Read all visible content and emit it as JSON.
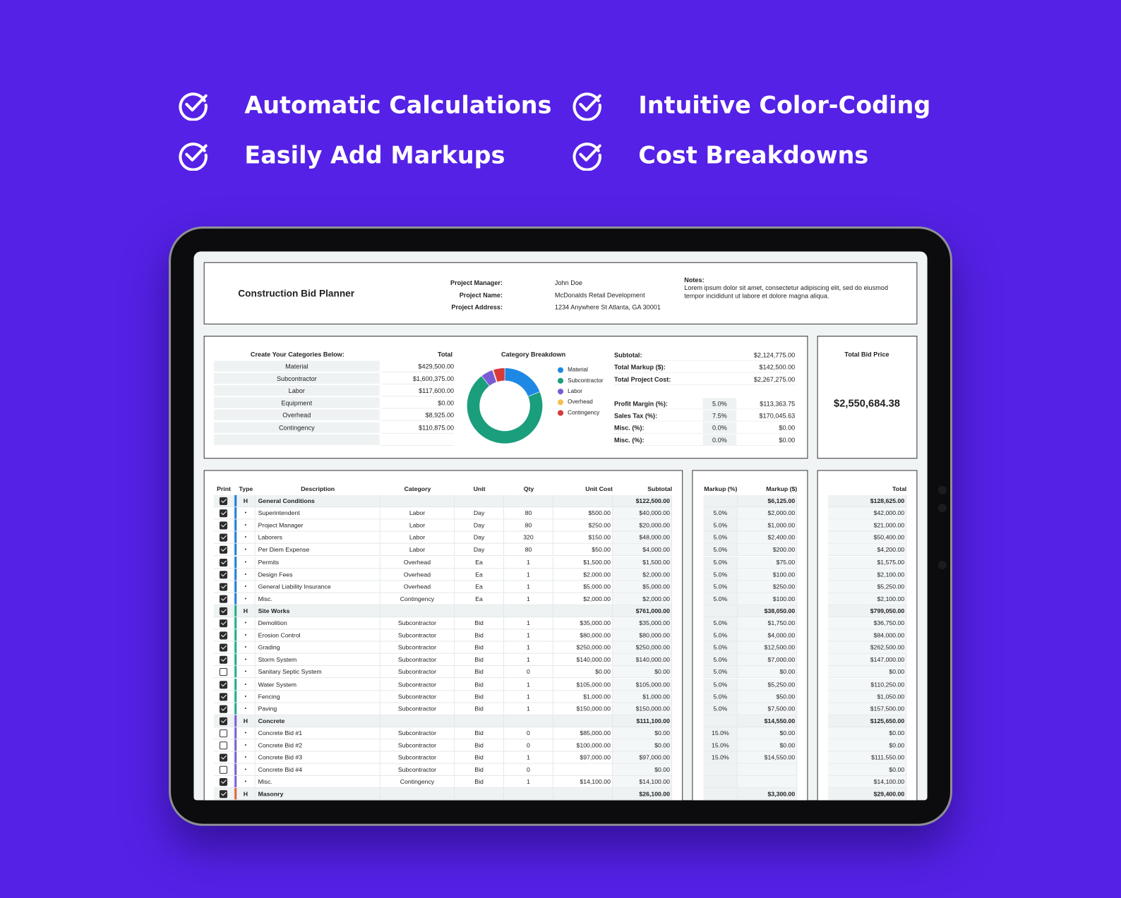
{
  "features": [
    "Automatic Calculations",
    "Intuitive Color-Coding",
    "Easily Add Markups",
    "Cost Breakdowns"
  ],
  "header": {
    "title": "Construction Bid Planner",
    "fields": [
      {
        "label": "Project Manager:",
        "value": "John Doe"
      },
      {
        "label": "Project Name:",
        "value": "McDonalds Retail Development"
      },
      {
        "label": "Project Address:",
        "value": "1234 Anywhere St Atlanta, GA 30001"
      }
    ],
    "notes_label": "Notes:",
    "notes": "Lorem ipsum dolor sit amet, consectetur adipiscing elit, sed do eiusmod tempor incididunt ut labore et dolore magna aliqua."
  },
  "categories": {
    "header": "Create Your Categories Below:",
    "total_header": "Total",
    "items": [
      {
        "name": "Material",
        "total": "$429,500.00"
      },
      {
        "name": "Subcontractor",
        "total": "$1,600,375.00"
      },
      {
        "name": "Labor",
        "total": "$117,600.00"
      },
      {
        "name": "Equipment",
        "total": "$0.00"
      },
      {
        "name": "Overhead",
        "total": "$8,925.00"
      },
      {
        "name": "Contingency",
        "total": "$110,875.00"
      },
      {
        "name": "",
        "total": ""
      }
    ]
  },
  "chart_data": {
    "type": "pie",
    "title": "Category Breakdown",
    "legend": "right",
    "categories": [
      "Material",
      "Subcontractor",
      "Labor",
      "Overhead",
      "Contingency"
    ],
    "values": [
      429500,
      1600375,
      117600,
      8925,
      110875
    ],
    "colors": [
      "#1e88e5",
      "#1a9e7c",
      "#7a5bd6",
      "#f5c04f",
      "#d63a3a"
    ]
  },
  "summary": {
    "rows": [
      {
        "label": "Subtotal:",
        "pct": "",
        "value": "$2,124,775.00"
      },
      {
        "label": "Total Markup ($):",
        "pct": "",
        "value": "$142,500.00"
      },
      {
        "label": "Total Project Cost:",
        "pct": "",
        "value": "$2,267,275.00"
      }
    ],
    "adjust": [
      {
        "label": "Profit Margin (%):",
        "pct": "5.0%",
        "value": "$113,363.75"
      },
      {
        "label": "Sales Tax (%):",
        "pct": "7.5%",
        "value": "$170,045.63"
      },
      {
        "label": "Misc. (%):",
        "pct": "0.0%",
        "value": "$0.00"
      },
      {
        "label": "Misc. (%):",
        "pct": "0.0%",
        "value": "$0.00"
      }
    ]
  },
  "total_bid": {
    "label": "Total Bid Price",
    "value": "$2,550,684.38"
  },
  "table": {
    "headers": {
      "print": "Print",
      "type": "Type",
      "description": "Description",
      "category": "Category",
      "unit": "Unit",
      "qty": "Qty",
      "unit_cost": "Unit Cost",
      "subtotal": "Subtotal",
      "markup_pct": "Markup (%)",
      "markup_amt": "Markup ($)",
      "total": "Total"
    },
    "section_colors": {
      "General Conditions": "#1e7fd8",
      "Site Works": "#1fae8a",
      "Concrete": "#7b5fd6",
      "Masonry": "#e0643c"
    },
    "rows": [
      {
        "print": true,
        "type": "H",
        "description": "General Conditions",
        "category": "",
        "unit": "",
        "qty": "",
        "unit_cost": "",
        "subtotal": "$122,500.00",
        "markup_pct": "",
        "markup_amt": "$6,125.00",
        "total": "$128,625.00"
      },
      {
        "print": true,
        "type": "•",
        "description": "Superintendent",
        "category": "Labor",
        "unit": "Day",
        "qty": "80",
        "unit_cost": "$500.00",
        "subtotal": "$40,000.00",
        "markup_pct": "5.0%",
        "markup_amt": "$2,000.00",
        "total": "$42,000.00"
      },
      {
        "print": true,
        "type": "•",
        "description": "Project Manager",
        "category": "Labor",
        "unit": "Day",
        "qty": "80",
        "unit_cost": "$250.00",
        "subtotal": "$20,000.00",
        "markup_pct": "5.0%",
        "markup_amt": "$1,000.00",
        "total": "$21,000.00"
      },
      {
        "print": true,
        "type": "•",
        "description": "Laborers",
        "category": "Labor",
        "unit": "Day",
        "qty": "320",
        "unit_cost": "$150.00",
        "subtotal": "$48,000.00",
        "markup_pct": "5.0%",
        "markup_amt": "$2,400.00",
        "total": "$50,400.00"
      },
      {
        "print": true,
        "type": "•",
        "description": "Per Diem Expense",
        "category": "Labor",
        "unit": "Day",
        "qty": "80",
        "unit_cost": "$50.00",
        "subtotal": "$4,000.00",
        "markup_pct": "5.0%",
        "markup_amt": "$200.00",
        "total": "$4,200.00"
      },
      {
        "print": true,
        "type": "•",
        "description": "Permits",
        "category": "Overhead",
        "unit": "Ea",
        "qty": "1",
        "unit_cost": "$1,500.00",
        "subtotal": "$1,500.00",
        "markup_pct": "5.0%",
        "markup_amt": "$75.00",
        "total": "$1,575.00"
      },
      {
        "print": true,
        "type": "•",
        "description": "Design Fees",
        "category": "Overhead",
        "unit": "Ea",
        "qty": "1",
        "unit_cost": "$2,000.00",
        "subtotal": "$2,000.00",
        "markup_pct": "5.0%",
        "markup_amt": "$100.00",
        "total": "$2,100.00"
      },
      {
        "print": true,
        "type": "•",
        "description": "General Liability Insurance",
        "category": "Overhead",
        "unit": "Ea",
        "qty": "1",
        "unit_cost": "$5,000.00",
        "subtotal": "$5,000.00",
        "markup_pct": "5.0%",
        "markup_amt": "$250.00",
        "total": "$5,250.00"
      },
      {
        "print": true,
        "type": "•",
        "description": "Misc.",
        "category": "Contingency",
        "unit": "Ea",
        "qty": "1",
        "unit_cost": "$2,000.00",
        "subtotal": "$2,000.00",
        "markup_pct": "5.0%",
        "markup_amt": "$100.00",
        "total": "$2,100.00"
      },
      {
        "print": true,
        "type": "H",
        "description": "Site Works",
        "category": "",
        "unit": "",
        "qty": "",
        "unit_cost": "",
        "subtotal": "$761,000.00",
        "markup_pct": "",
        "markup_amt": "$38,050.00",
        "total": "$799,050.00"
      },
      {
        "print": true,
        "type": "•",
        "description": "Demolition",
        "category": "Subcontractor",
        "unit": "Bid",
        "qty": "1",
        "unit_cost": "$35,000.00",
        "subtotal": "$35,000.00",
        "markup_pct": "5.0%",
        "markup_amt": "$1,750.00",
        "total": "$36,750.00"
      },
      {
        "print": true,
        "type": "•",
        "description": "Erosion Control",
        "category": "Subcontractor",
        "unit": "Bid",
        "qty": "1",
        "unit_cost": "$80,000.00",
        "subtotal": "$80,000.00",
        "markup_pct": "5.0%",
        "markup_amt": "$4,000.00",
        "total": "$84,000.00"
      },
      {
        "print": true,
        "type": "•",
        "description": "Grading",
        "category": "Subcontractor",
        "unit": "Bid",
        "qty": "1",
        "unit_cost": "$250,000.00",
        "subtotal": "$250,000.00",
        "markup_pct": "5.0%",
        "markup_amt": "$12,500.00",
        "total": "$262,500.00"
      },
      {
        "print": true,
        "type": "•",
        "description": "Storm System",
        "category": "Subcontractor",
        "unit": "Bid",
        "qty": "1",
        "unit_cost": "$140,000.00",
        "subtotal": "$140,000.00",
        "markup_pct": "5.0%",
        "markup_amt": "$7,000.00",
        "total": "$147,000.00"
      },
      {
        "print": false,
        "type": "•",
        "description": "Sanitary Septic System",
        "category": "Subcontractor",
        "unit": "Bid",
        "qty": "0",
        "unit_cost": "$0.00",
        "subtotal": "$0.00",
        "markup_pct": "5.0%",
        "markup_amt": "$0.00",
        "total": "$0.00"
      },
      {
        "print": true,
        "type": "•",
        "description": "Water System",
        "category": "Subcontractor",
        "unit": "Bid",
        "qty": "1",
        "unit_cost": "$105,000.00",
        "subtotal": "$105,000.00",
        "markup_pct": "5.0%",
        "markup_amt": "$5,250.00",
        "total": "$110,250.00"
      },
      {
        "print": true,
        "type": "•",
        "description": "Fencing",
        "category": "Subcontractor",
        "unit": "Bid",
        "qty": "1",
        "unit_cost": "$1,000.00",
        "subtotal": "$1,000.00",
        "markup_pct": "5.0%",
        "markup_amt": "$50.00",
        "total": "$1,050.00"
      },
      {
        "print": true,
        "type": "•",
        "description": "Paving",
        "category": "Subcontractor",
        "unit": "Bid",
        "qty": "1",
        "unit_cost": "$150,000.00",
        "subtotal": "$150,000.00",
        "markup_pct": "5.0%",
        "markup_amt": "$7,500.00",
        "total": "$157,500.00"
      },
      {
        "print": true,
        "type": "H",
        "description": "Concrete",
        "category": "",
        "unit": "",
        "qty": "",
        "unit_cost": "",
        "subtotal": "$111,100.00",
        "markup_pct": "",
        "markup_amt": "$14,550.00",
        "total": "$125,650.00"
      },
      {
        "print": false,
        "type": "•",
        "description": "Concrete Bid #1",
        "category": "Subcontractor",
        "unit": "Bid",
        "qty": "0",
        "unit_cost": "$85,000.00",
        "subtotal": "$0.00",
        "markup_pct": "15.0%",
        "markup_amt": "$0.00",
        "total": "$0.00"
      },
      {
        "print": false,
        "type": "•",
        "description": "Concrete Bid #2",
        "category": "Subcontractor",
        "unit": "Bid",
        "qty": "0",
        "unit_cost": "$100,000.00",
        "subtotal": "$0.00",
        "markup_pct": "15.0%",
        "markup_amt": "$0.00",
        "total": "$0.00"
      },
      {
        "print": true,
        "type": "•",
        "description": "Concrete Bid #3",
        "category": "Subcontractor",
        "unit": "Bid",
        "qty": "1",
        "unit_cost": "$97,000.00",
        "subtotal": "$97,000.00",
        "markup_pct": "15.0%",
        "markup_amt": "$14,550.00",
        "total": "$111,550.00"
      },
      {
        "print": false,
        "type": "•",
        "description": "Concrete Bid #4",
        "category": "Subcontractor",
        "unit": "Bid",
        "qty": "0",
        "unit_cost": "",
        "subtotal": "$0.00",
        "markup_pct": "",
        "markup_amt": "",
        "total": "$0.00"
      },
      {
        "print": true,
        "type": "•",
        "description": "Misc.",
        "category": "Contingency",
        "unit": "Bid",
        "qty": "1",
        "unit_cost": "$14,100.00",
        "subtotal": "$14,100.00",
        "markup_pct": "",
        "markup_amt": "",
        "total": "$14,100.00"
      },
      {
        "print": true,
        "type": "H",
        "description": "Masonry",
        "category": "",
        "unit": "",
        "qty": "",
        "unit_cost": "",
        "subtotal": "$26,100.00",
        "markup_pct": "",
        "markup_amt": "$3,300.00",
        "total": "$29,400.00"
      }
    ]
  }
}
